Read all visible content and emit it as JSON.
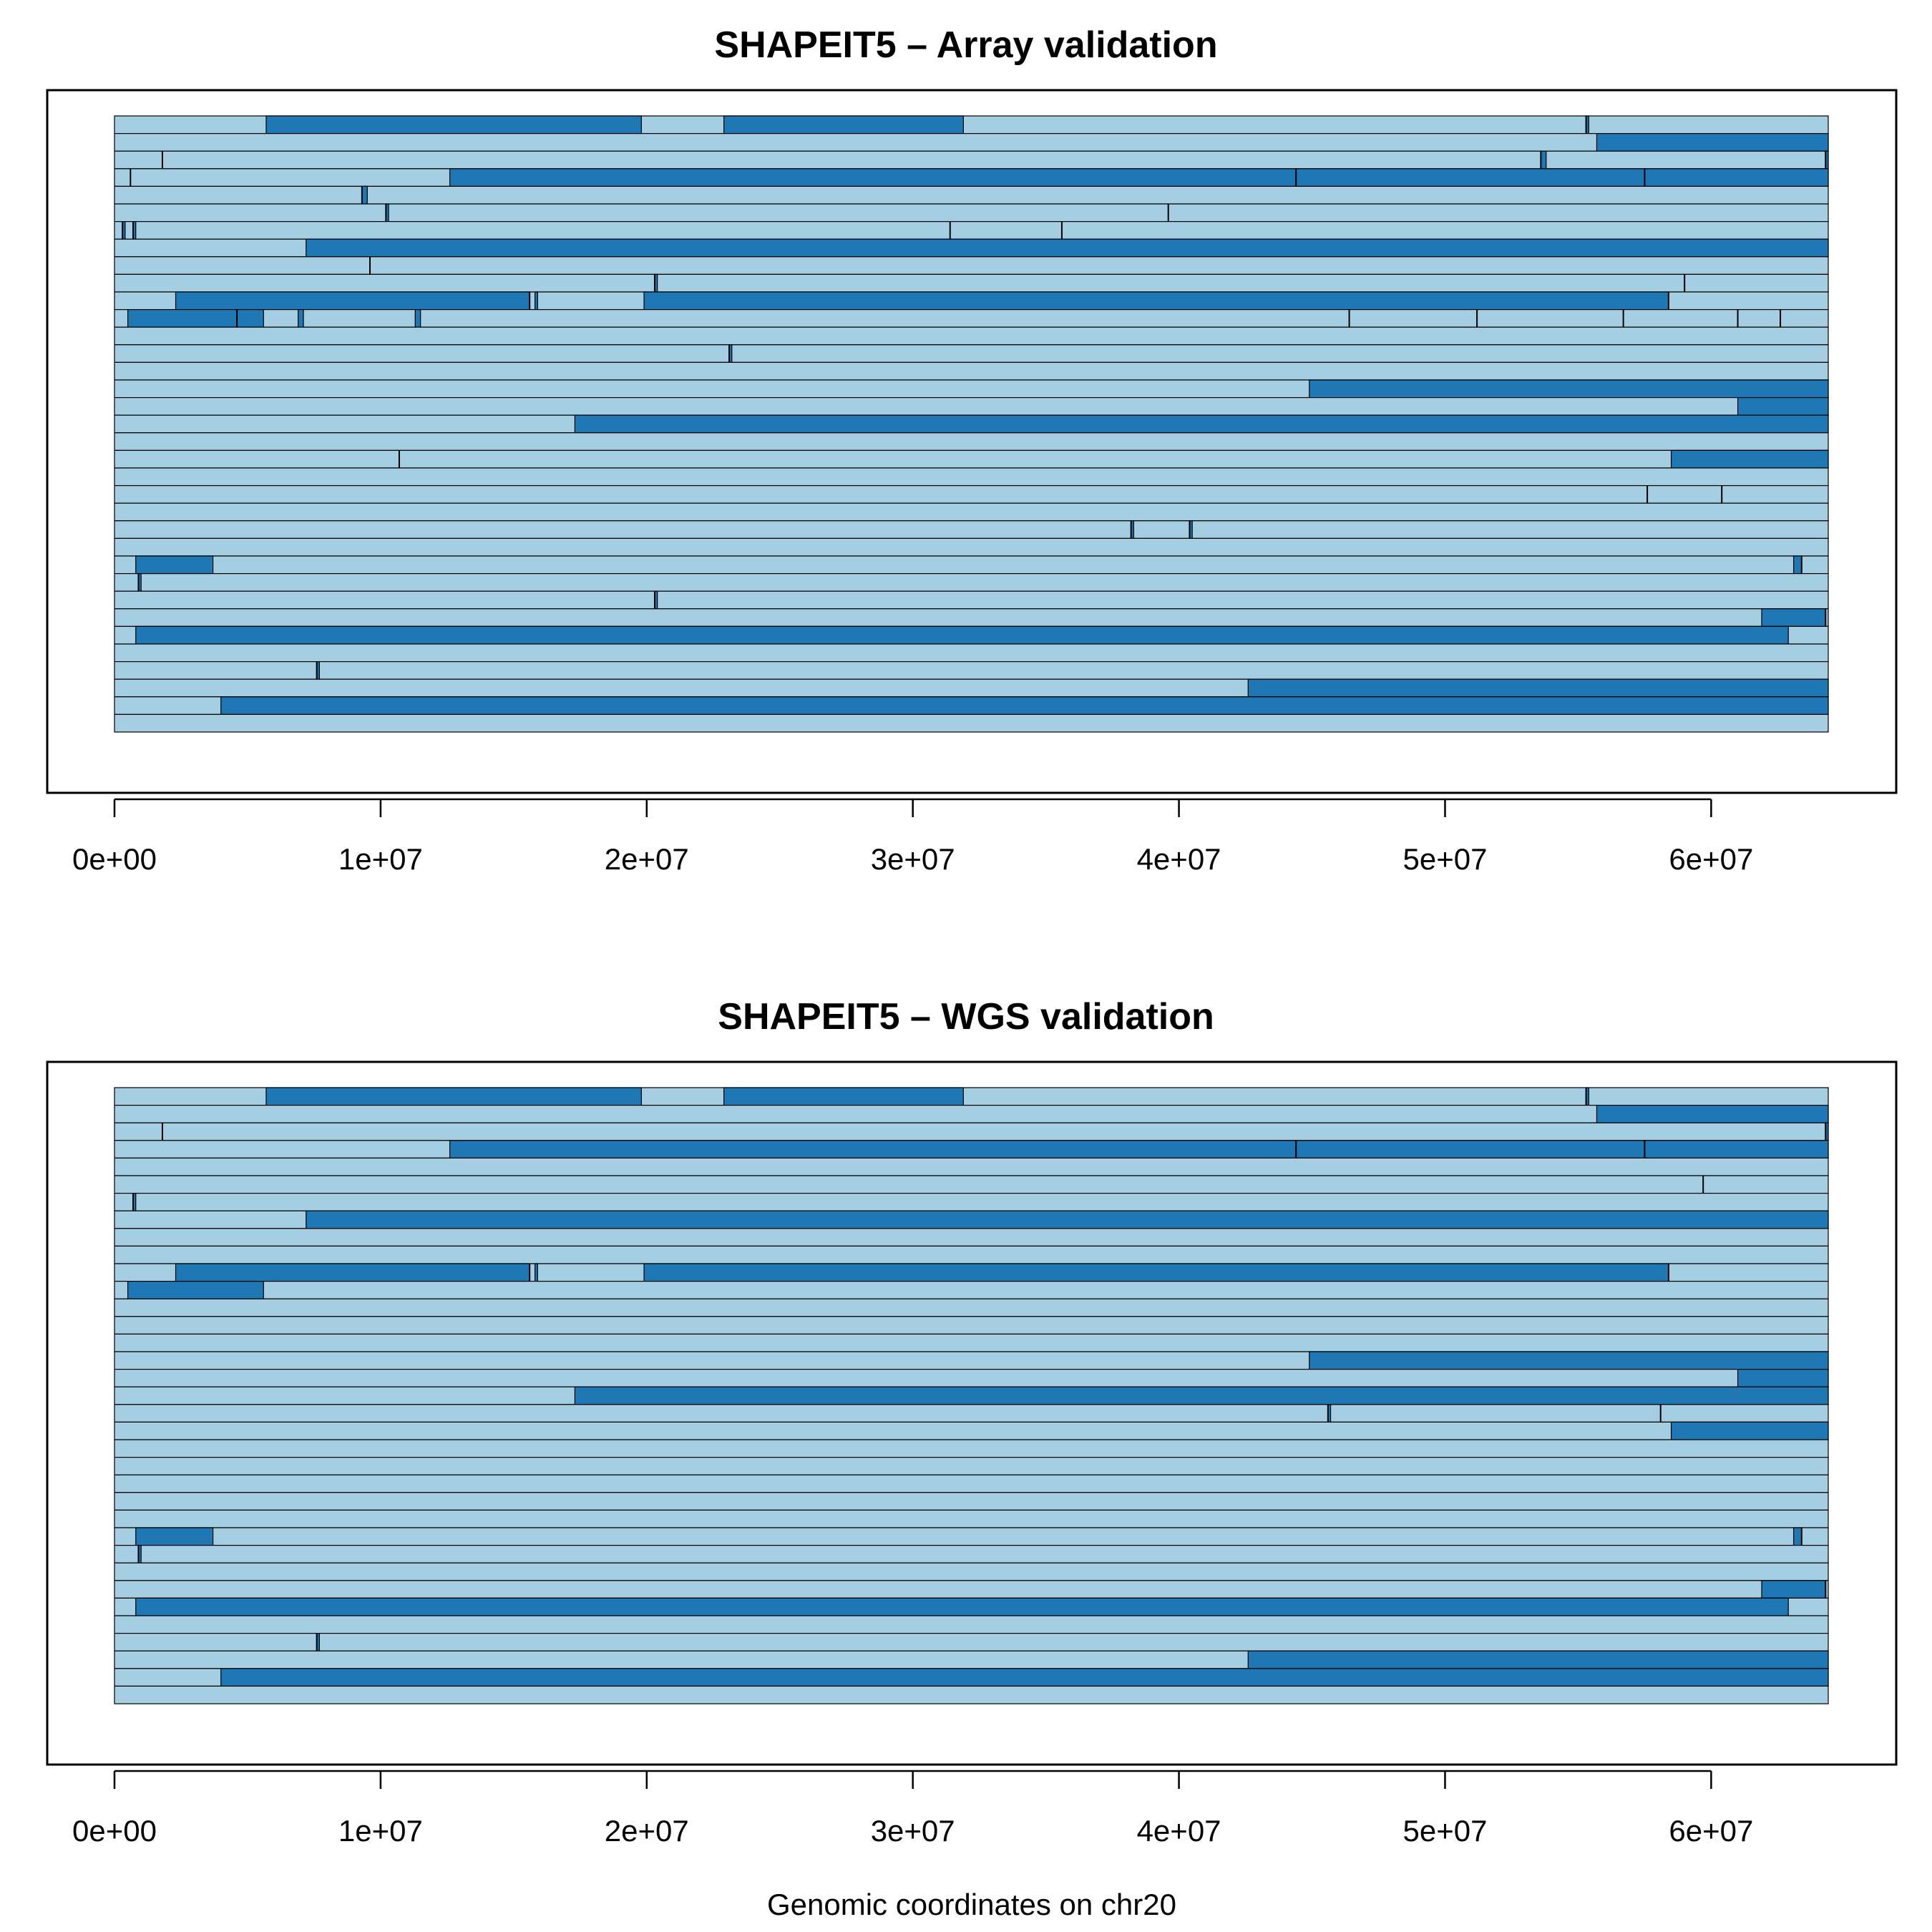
{
  "figure": {
    "xlabel": "Genomic coordinates on chr20"
  },
  "colors": {
    "ibd_none": "#a6cee3",
    "ibd_shared": "#1f78b4",
    "switch": "#000000"
  },
  "chart_data": [
    {
      "type": "bar",
      "title": "SHAPEIT5 – Array validation",
      "xlabel": "",
      "xlim": [
        0,
        64400000
      ],
      "xticks": [
        0,
        10000000,
        20000000,
        30000000,
        40000000,
        50000000,
        60000000
      ],
      "xtick_labels": [
        "0e+00",
        "1e+07",
        "2e+07",
        "3e+07",
        "4e+07",
        "5e+07",
        "6e+07"
      ],
      "grid": false,
      "rows": [
        {
          "dark": [
            [
              5700000.0,
              19800000.0
            ],
            [
              22900000.0,
              31900000.0
            ],
            [
              55300000.0,
              55400000.0
            ]
          ],
          "switches": [
            55300000.0
          ]
        },
        {
          "dark": [
            [
              55700000.0,
              64400000.0
            ]
          ],
          "switches": []
        },
        {
          "dark": [
            [
              53600000.0,
              53800000.0
            ],
            [
              64300000.0,
              64400000.0
            ]
          ],
          "switches": [
            1800000.0,
            53600000.0,
            64300000.0
          ]
        },
        {
          "dark": [
            [
              12600000.0,
              64400000.0
            ]
          ],
          "switches": [
            600000.0,
            44400000.0,
            57500000.0
          ]
        },
        {
          "dark": [
            [
              9300000.0,
              9500000.0
            ]
          ],
          "switches": [
            9300000.0
          ]
        },
        {
          "dark": [
            [
              10200000.0,
              10300000.0
            ]
          ],
          "switches": [
            10200000.0,
            39600000.0
          ]
        },
        {
          "dark": [
            [
              300000.0,
              400000.0
            ],
            [
              700000.0,
              800000.0
            ]
          ],
          "switches": [
            300000.0,
            700000.0,
            31400000.0,
            35600000.0
          ]
        },
        {
          "dark": [
            [
              7200000.0,
              64400000.0
            ]
          ],
          "switches": []
        },
        {
          "dark": [],
          "switches": [
            9600000.0
          ]
        },
        {
          "dark": [
            [
              20300000.0,
              20400000.0
            ]
          ],
          "switches": [
            20300000.0,
            59000000.0
          ]
        },
        {
          "dark": [
            [
              2300000.0,
              15600000.0
            ],
            [
              15800000.0,
              15900000.0
            ],
            [
              19900000.0,
              58400000.0
            ]
          ],
          "switches": [
            15600000.0,
            58400000.0
          ]
        },
        {
          "dark": [
            [
              500000.0,
              5600000.0
            ],
            [
              6900000.0,
              7100000.0
            ],
            [
              11300000.0,
              11500000.0
            ]
          ],
          "switches": [
            4600000.0,
            46400000.0,
            51200000.0,
            56700000.0,
            61000000.0,
            62600000.0
          ]
        },
        {
          "dark": [],
          "switches": []
        },
        {
          "dark": [
            [
              23100000.0,
              23200000.0
            ]
          ],
          "switches": [
            23100000.0
          ]
        },
        {
          "dark": [],
          "switches": []
        },
        {
          "dark": [
            [
              44900000.0,
              64400000.0
            ]
          ],
          "switches": []
        },
        {
          "dark": [
            [
              61000000.0,
              64400000.0
            ]
          ],
          "switches": []
        },
        {
          "dark": [
            [
              17300000.0,
              64400000.0
            ]
          ],
          "switches": []
        },
        {
          "dark": [],
          "switches": []
        },
        {
          "dark": [
            [
              58500000.0,
              64400000.0
            ]
          ],
          "switches": [
            10700000.0
          ]
        },
        {
          "dark": [],
          "switches": []
        },
        {
          "dark": [],
          "switches": [
            57600000.0,
            60400000.0
          ]
        },
        {
          "dark": [],
          "switches": []
        },
        {
          "dark": [
            [
              38200000.0,
              38300000.0
            ],
            [
              40400000.0,
              40500000.0
            ]
          ],
          "switches": [
            38200000.0,
            40400000.0
          ]
        },
        {
          "dark": [],
          "switches": []
        },
        {
          "dark": [
            [
              800000.0,
              3700000.0
            ],
            [
              63100000.0,
              63400000.0
            ]
          ],
          "switches": [
            63400000.0
          ]
        },
        {
          "dark": [
            [
              900000.0,
              1000000.0
            ]
          ],
          "switches": [
            900000.0
          ]
        },
        {
          "dark": [
            [
              20300000.0,
              20400000.0
            ]
          ],
          "switches": [
            20300000.0
          ]
        },
        {
          "dark": [
            [
              61900000.0,
              64300000.0
            ]
          ],
          "switches": [
            64300000.0
          ]
        },
        {
          "dark": [
            [
              800000.0,
              62900000.0
            ]
          ],
          "switches": []
        },
        {
          "dark": [],
          "switches": []
        },
        {
          "dark": [
            [
              7600000.0,
              7700000.0
            ]
          ],
          "switches": [
            7600000.0
          ]
        },
        {
          "dark": [
            [
              42600000.0,
              64400000.0
            ]
          ],
          "switches": []
        },
        {
          "dark": [
            [
              4000000.0,
              64400000.0
            ]
          ],
          "switches": []
        },
        {
          "dark": [],
          "switches": []
        }
      ]
    },
    {
      "type": "bar",
      "title": "SHAPEIT5 – WGS validation",
      "xlabel": "Genomic coordinates on chr20",
      "xlim": [
        0,
        64400000
      ],
      "xticks": [
        0,
        10000000,
        20000000,
        30000000,
        40000000,
        50000000,
        60000000
      ],
      "xtick_labels": [
        "0e+00",
        "1e+07",
        "2e+07",
        "3e+07",
        "4e+07",
        "5e+07",
        "6e+07"
      ],
      "grid": false,
      "rows": [
        {
          "dark": [
            [
              5700000.0,
              19800000.0
            ],
            [
              22900000.0,
              31900000.0
            ],
            [
              55300000.0,
              55400000.0
            ]
          ],
          "switches": [
            55300000.0
          ]
        },
        {
          "dark": [
            [
              55700000.0,
              64400000.0
            ]
          ],
          "switches": []
        },
        {
          "dark": [
            [
              64300000.0,
              64400000.0
            ]
          ],
          "switches": [
            1800000.0,
            64300000.0
          ]
        },
        {
          "dark": [
            [
              12600000.0,
              64400000.0
            ]
          ],
          "switches": [
            44400000.0,
            57500000.0
          ]
        },
        {
          "dark": [],
          "switches": []
        },
        {
          "dark": [],
          "switches": [
            59700000.0
          ]
        },
        {
          "dark": [
            [
              700000.0,
              800000.0
            ]
          ],
          "switches": [
            700000.0
          ]
        },
        {
          "dark": [
            [
              7200000.0,
              64400000.0
            ]
          ],
          "switches": []
        },
        {
          "dark": [],
          "switches": []
        },
        {
          "dark": [],
          "switches": []
        },
        {
          "dark": [
            [
              2300000.0,
              15600000.0
            ],
            [
              15800000.0,
              15900000.0
            ],
            [
              19900000.0,
              58400000.0
            ]
          ],
          "switches": [
            15600000.0,
            58400000.0
          ]
        },
        {
          "dark": [
            [
              500000.0,
              5600000.0
            ]
          ],
          "switches": []
        },
        {
          "dark": [],
          "switches": []
        },
        {
          "dark": [],
          "switches": []
        },
        {
          "dark": [],
          "switches": []
        },
        {
          "dark": [
            [
              44900000.0,
              64400000.0
            ]
          ],
          "switches": []
        },
        {
          "dark": [
            [
              61000000.0,
              64400000.0
            ]
          ],
          "switches": []
        },
        {
          "dark": [
            [
              17300000.0,
              64400000.0
            ]
          ],
          "switches": []
        },
        {
          "dark": [
            [
              45600000.0,
              45700000.0
            ]
          ],
          "switches": [
            45600000.0,
            58100000.0
          ]
        },
        {
          "dark": [
            [
              58500000.0,
              64400000.0
            ]
          ],
          "switches": []
        },
        {
          "dark": [],
          "switches": []
        },
        {
          "dark": [],
          "switches": []
        },
        {
          "dark": [],
          "switches": []
        },
        {
          "dark": [],
          "switches": []
        },
        {
          "dark": [],
          "switches": []
        },
        {
          "dark": [
            [
              800000.0,
              3700000.0
            ],
            [
              63100000.0,
              63400000.0
            ]
          ],
          "switches": [
            63400000.0
          ]
        },
        {
          "dark": [
            [
              900000.0,
              1000000.0
            ]
          ],
          "switches": [
            900000.0
          ]
        },
        {
          "dark": [],
          "switches": []
        },
        {
          "dark": [
            [
              61900000.0,
              64300000.0
            ]
          ],
          "switches": [
            64300000.0
          ]
        },
        {
          "dark": [
            [
              800000.0,
              62900000.0
            ]
          ],
          "switches": []
        },
        {
          "dark": [],
          "switches": []
        },
        {
          "dark": [
            [
              7600000.0,
              7700000.0
            ]
          ],
          "switches": [
            7600000.0
          ]
        },
        {
          "dark": [
            [
              42600000.0,
              64400000.0
            ]
          ],
          "switches": []
        },
        {
          "dark": [
            [
              4000000.0,
              64400000.0
            ]
          ],
          "switches": []
        },
        {
          "dark": [],
          "switches": []
        }
      ]
    }
  ]
}
